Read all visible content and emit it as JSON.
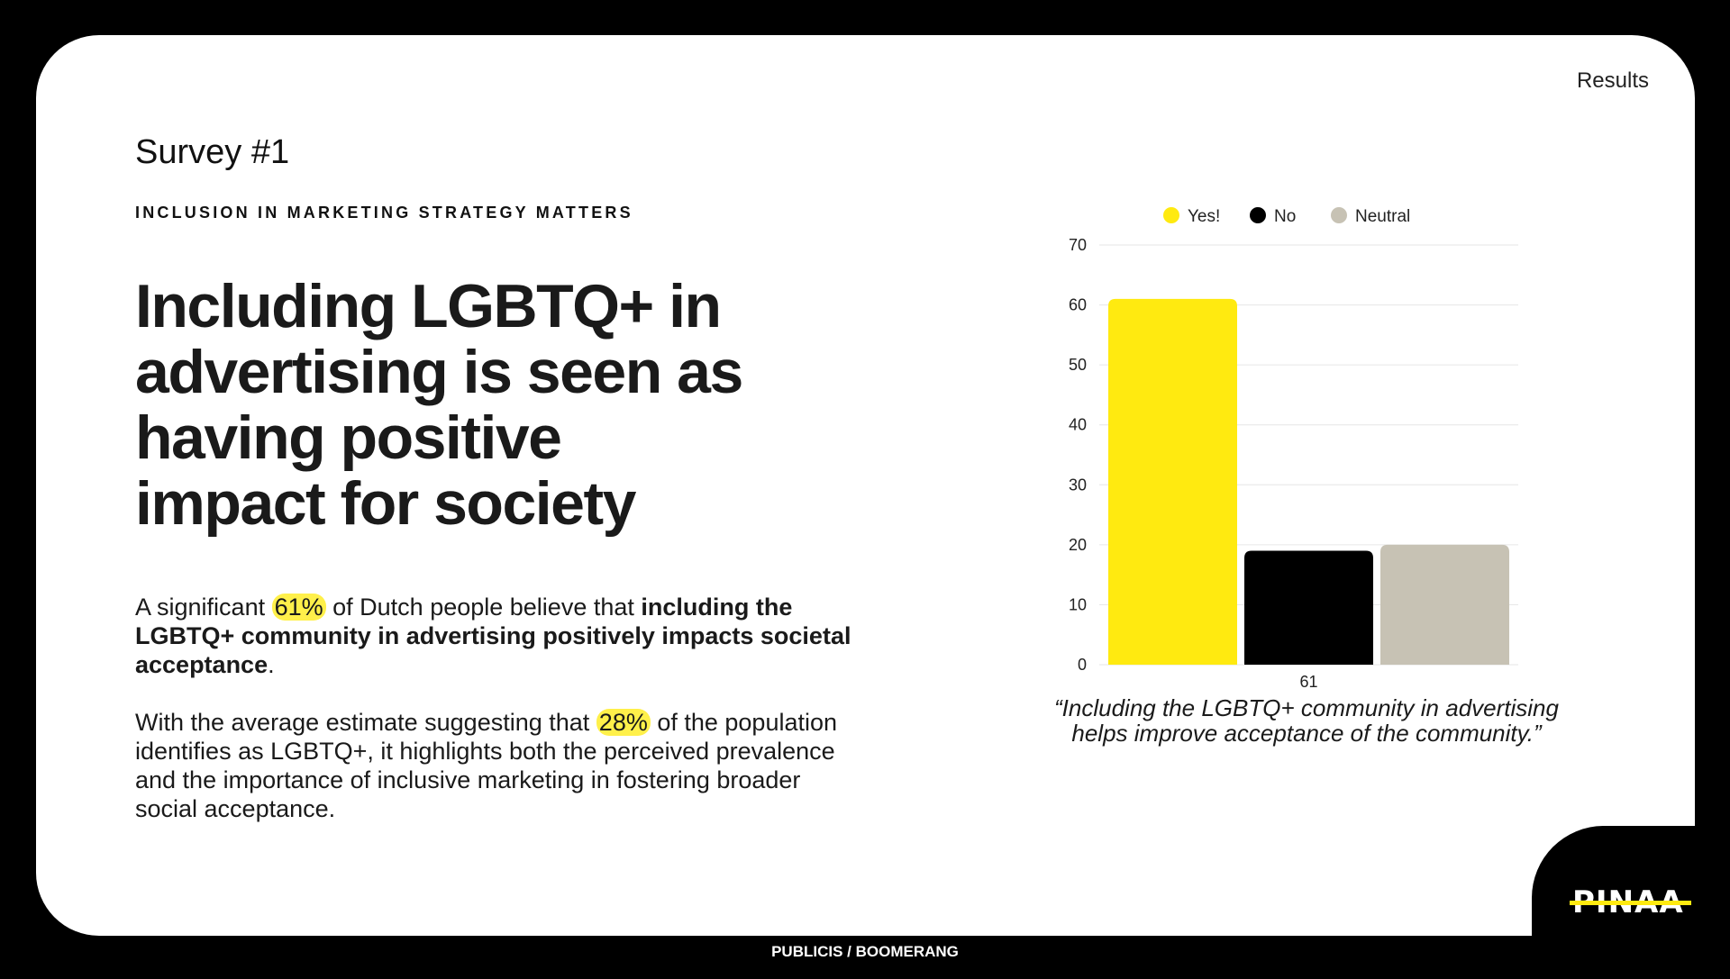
{
  "header": {
    "section": "Results",
    "survey": "Survey #1"
  },
  "kicker": "INCLUSION IN MARKETING STRATEGY MATTERS",
  "headline": [
    "Including LGBTQ+ in",
    "advertising is seen as",
    "having positive",
    "impact for society"
  ],
  "paragraph1": {
    "pre": "A significant ",
    "highlight": "61%",
    "mid": " of Dutch people believe that ",
    "bold": "including the LGBTQ+ community in advertising positively impacts societal acceptance",
    "post": "."
  },
  "paragraph2": {
    "pre": "With the average estimate suggesting that ",
    "highlight": "28%",
    "post": " of the population identifies as LGBTQ+, it highlights both the perceived prevalence and the importance of inclusive marketing in fostering broader social acceptance."
  },
  "chart_data": {
    "type": "bar",
    "categories": [
      "61"
    ],
    "series": [
      {
        "name": "Yes!",
        "values": [
          61
        ],
        "color": "#ffea10"
      },
      {
        "name": "No",
        "values": [
          19
        ],
        "color": "#000000"
      },
      {
        "name": "Neutral",
        "values": [
          20
        ],
        "color": "#c7c2b4"
      }
    ],
    "ylim": [
      0,
      70
    ],
    "yticks": [
      "0",
      "10",
      "20",
      "30",
      "40",
      "50",
      "60",
      "70"
    ],
    "grid": true,
    "legend": "top"
  },
  "quote": "“Including the LGBTQ+ community in advertising helps improve acceptance of the community.”",
  "footer": "PUBLICIS / BOOMERANG",
  "logo": "PINAA"
}
